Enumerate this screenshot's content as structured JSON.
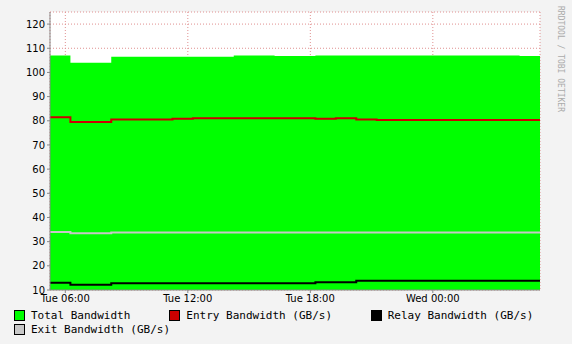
{
  "chart_data": {
    "type": "line",
    "line_style": "step",
    "grid": true,
    "legend": "bottom",
    "annotations": [
      "RRDTOOL / TOBI OETIKER"
    ],
    "x": [
      5.25,
      6.25,
      7.25,
      8.25,
      9.25,
      10.25,
      11.25,
      12.25,
      13.25,
      14.25,
      15.25,
      16.25,
      17.25,
      18.25,
      19.25,
      20.25,
      21.25,
      22.25,
      23.25,
      24.25,
      25.25,
      26.25,
      27.25,
      28.25,
      29.25
    ],
    "xlim": [
      5.25,
      29.25
    ],
    "xticks": [
      {
        "value": 6,
        "label": "Tue 06:00"
      },
      {
        "value": 12,
        "label": "Tue 12:00"
      },
      {
        "value": 18,
        "label": "Tue 18:00"
      },
      {
        "value": 24,
        "label": "Wed 00:00"
      }
    ],
    "ylim": [
      10,
      125
    ],
    "yticks": [
      10,
      20,
      30,
      40,
      50,
      60,
      70,
      80,
      90,
      100,
      110,
      120
    ],
    "series": [
      {
        "name": "Total Bandwidth",
        "type": "area",
        "color": "#00ff00",
        "values": [
          107,
          104,
          104,
          106.5,
          106.5,
          106.5,
          106.5,
          106.5,
          106.5,
          107,
          107,
          106.8,
          106.8,
          107,
          107,
          107,
          107,
          107,
          107,
          107,
          107,
          107,
          107,
          106.8,
          106.5
        ]
      },
      {
        "name": "Entry Bandwidth (GB/s)",
        "type": "line",
        "color": "#cc0000",
        "values": [
          81.5,
          79.5,
          79.5,
          80.5,
          80.5,
          80.5,
          80.8,
          81,
          81,
          81,
          81,
          81,
          81,
          80.8,
          81,
          80.5,
          80.3,
          80.3,
          80.3,
          80.3,
          80.3,
          80.3,
          80.3,
          80.3,
          80.2
        ]
      },
      {
        "name": "Relay Bandwidth (GB/s)",
        "type": "line",
        "color": "#000000",
        "values": [
          13,
          12.2,
          12.2,
          12.8,
          12.8,
          12.8,
          12.8,
          12.8,
          12.8,
          12.8,
          12.8,
          12.8,
          12.8,
          13.2,
          13.2,
          13.8,
          13.8,
          13.8,
          13.8,
          13.8,
          13.8,
          13.8,
          13.8,
          13.8,
          13.8
        ]
      },
      {
        "name": "Exit Bandwidth (GB/s)",
        "type": "line",
        "color": "#c8c8c8",
        "values": [
          34,
          33.5,
          33.5,
          33.8,
          33.8,
          33.8,
          33.8,
          33.8,
          33.8,
          33.8,
          33.8,
          33.8,
          33.8,
          33.8,
          33.8,
          33.8,
          33.8,
          33.8,
          33.8,
          33.8,
          33.8,
          33.8,
          33.8,
          33.8,
          33.8
        ]
      }
    ]
  }
}
